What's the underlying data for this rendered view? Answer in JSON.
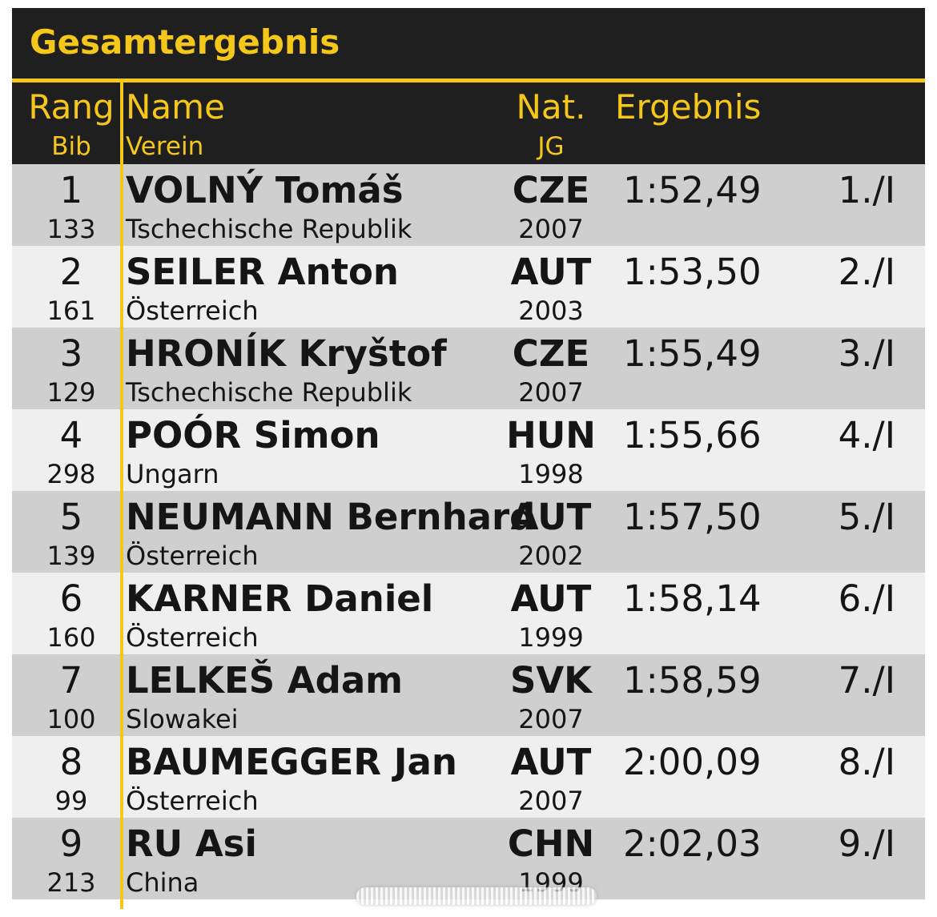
{
  "title": "Gesamtergebnis",
  "columns": {
    "rang": "Rang",
    "bib": "Bib",
    "name": "Name",
    "verein": "Verein",
    "nat": "Nat.",
    "jg": "JG",
    "ergebnis": "Ergebnis"
  },
  "colors": {
    "accent": "#f5c71a",
    "header_bg": "#1f1f1f",
    "row_odd": "#cfcfcf",
    "row_even": "#efefef"
  },
  "rows": [
    {
      "rang": "1",
      "bib": "133",
      "name": "VOLNÝ Tomáš",
      "verein": "Tschechische Republik",
      "nat": "CZE",
      "jg": "2007",
      "ergebnis": "1:52,49",
      "platz": "1./I"
    },
    {
      "rang": "2",
      "bib": "161",
      "name": "SEILER Anton",
      "verein": "Österreich",
      "nat": "AUT",
      "jg": "2003",
      "ergebnis": "1:53,50",
      "platz": "2./I"
    },
    {
      "rang": "3",
      "bib": "129",
      "name": "HRONÍK Kryštof",
      "verein": "Tschechische Republik",
      "nat": "CZE",
      "jg": "2007",
      "ergebnis": "1:55,49",
      "platz": "3./I"
    },
    {
      "rang": "4",
      "bib": "298",
      "name": "POÓR Simon",
      "verein": "Ungarn",
      "nat": "HUN",
      "jg": "1998",
      "ergebnis": "1:55,66",
      "platz": "4./I"
    },
    {
      "rang": "5",
      "bib": "139",
      "name": "NEUMANN Bernhard",
      "verein": "Österreich",
      "nat": "AUT",
      "jg": "2002",
      "ergebnis": "1:57,50",
      "platz": "5./I"
    },
    {
      "rang": "6",
      "bib": "160",
      "name": "KARNER Daniel",
      "verein": "Österreich",
      "nat": "AUT",
      "jg": "1999",
      "ergebnis": "1:58,14",
      "platz": "6./I"
    },
    {
      "rang": "7",
      "bib": "100",
      "name": "LELKEŠ Adam",
      "verein": "Slowakei",
      "nat": "SVK",
      "jg": "2007",
      "ergebnis": "1:58,59",
      "platz": "7./I"
    },
    {
      "rang": "8",
      "bib": "99",
      "name": "BAUMEGGER Jan",
      "verein": "Österreich",
      "nat": "AUT",
      "jg": "2007",
      "ergebnis": "2:00,09",
      "platz": "8./I"
    },
    {
      "rang": "9",
      "bib": "213",
      "name": "RU Asi",
      "verein": "China",
      "nat": "CHN",
      "jg": "1999",
      "ergebnis": "2:02,03",
      "platz": "9./I"
    }
  ]
}
